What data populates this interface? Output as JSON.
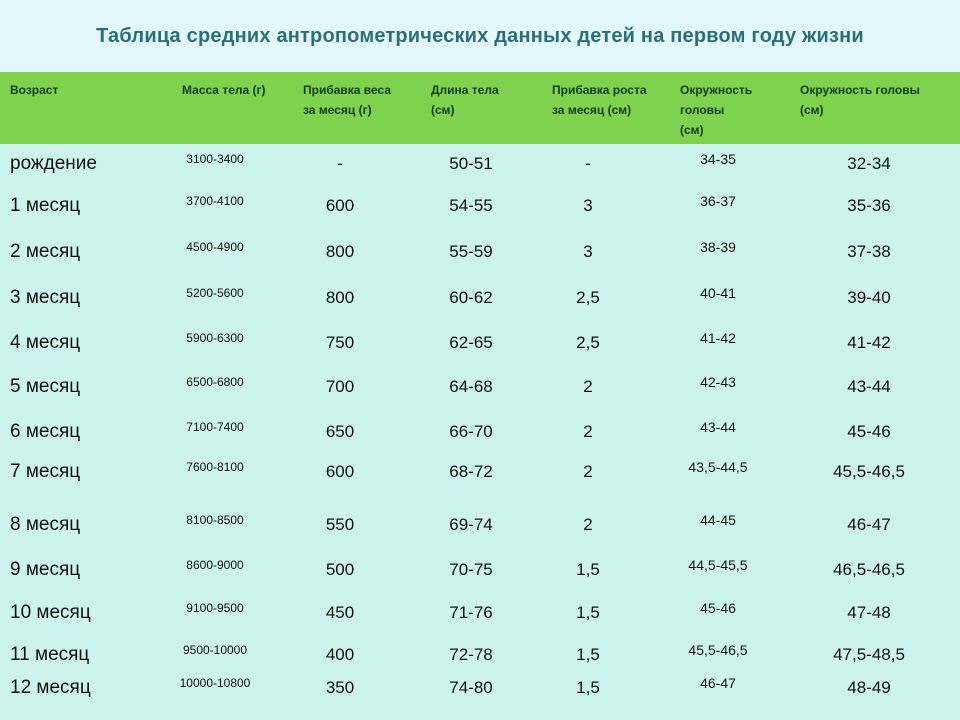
{
  "title": "Таблица средних антропометрических данных детей на первом году жизни",
  "columns": [
    "Возраст",
    "Масса тела (г)",
    "Прибавка веса за месяц (г)",
    "Длина тела (см)",
    "Прибавка роста за месяц (см)",
    "Окружность головы (см)",
    "Окружность головы (см)"
  ],
  "header_lines": {
    "age": [
      "Возраст"
    ],
    "mass": [
      "Масса тела (г)"
    ],
    "gain": [
      "Прибавка веса",
      "за месяц (г)"
    ],
    "length": [
      "Длина тела",
      "(см)"
    ],
    "growth": [
      "Прибавка роста",
      "за месяц (см)"
    ],
    "head1": [
      "Окружность",
      "головы",
      "(см)"
    ],
    "head2": [
      "Окружность головы",
      "(см)"
    ]
  },
  "rows": [
    [
      "рождение",
      "3100-3400",
      "-",
      "50-51",
      "-",
      "34-35",
      "32-34"
    ],
    [
      "1 месяц",
      "3700-4100",
      "600",
      "54-55",
      "3",
      "36-37",
      "35-36"
    ],
    [
      "2 месяц",
      "4500-4900",
      "800",
      "55-59",
      "3",
      "38-39",
      "37-38"
    ],
    [
      "3 месяц",
      "5200-5600",
      "800",
      "60-62",
      "2,5",
      "40-41",
      "39-40"
    ],
    [
      "4 месяц",
      "5900-6300",
      "750",
      "62-65",
      "2,5",
      "41-42",
      "41-42"
    ],
    [
      "5 месяц",
      "6500-6800",
      "700",
      "64-68",
      "2",
      "42-43",
      "43-44"
    ],
    [
      "6 месяц",
      "7100-7400",
      "650",
      "66-70",
      "2",
      "43-44",
      "45-46"
    ],
    [
      "7 месяц",
      "7600-8100",
      "600",
      "68-72",
      "2",
      "43,5-44,5",
      "45,5-46,5"
    ],
    [
      "8 месяц",
      "8100-8500",
      "550",
      "69-74",
      "2",
      "44-45",
      "46-47"
    ],
    [
      "9 месяц",
      "8600-9000",
      "500",
      "70-75",
      "1,5",
      "44,5-45,5",
      "46,5-46,5"
    ],
    [
      "10 месяц",
      "9100-9500",
      "450",
      "71-76",
      "1,5",
      "45-46",
      "47-48"
    ],
    [
      "11 месяц",
      "9500-10000",
      "400",
      "72-78",
      "1,5",
      "45,5-46,5",
      "47,5-48,5"
    ],
    [
      "12 месяц",
      "10000-10800",
      "350",
      "74-80",
      "1,5",
      "46-47",
      "48-49"
    ]
  ],
  "colors": {
    "title_band": "#e3f8fa",
    "title_text": "#2a6f79",
    "header_bg": "#7ed24d",
    "body_bg": "#cdf3ee"
  }
}
